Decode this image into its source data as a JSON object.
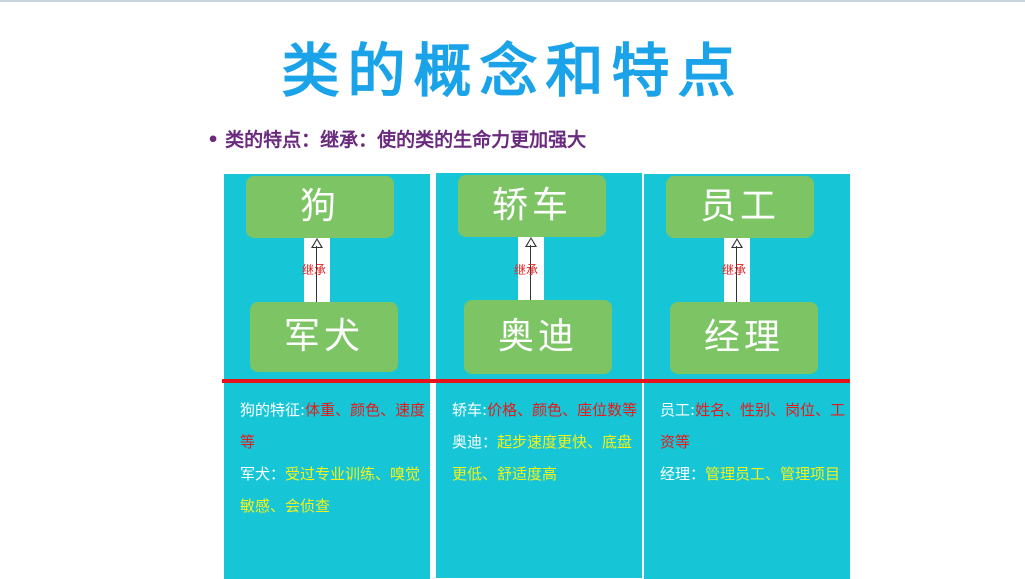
{
  "title": "类的概念和特点",
  "bullet": {
    "dot": "•",
    "text": "类的特点：继承：使的类的生命力更加强大"
  },
  "relation_label": "继承",
  "panels": [
    {
      "parent": "狗",
      "child": "军犬",
      "desc1_head": "狗的特征:",
      "desc1_body": "体重、颜色、速度等",
      "desc2_head": "军犬：",
      "desc2_body": "受过专业训练、嗅觉敏感、会侦查"
    },
    {
      "parent": "轿车",
      "child": "奥迪",
      "desc1_head": "轿车:",
      "desc1_body": "价格、颜色、座位数等",
      "desc2_head": "奥迪：",
      "desc2_body": "起步速度更快、底盘更低、舒适度高"
    },
    {
      "parent": "员工",
      "child": "经理",
      "desc1_head": "员工:",
      "desc1_body": "姓名、性别、岗位、工资等",
      "desc2_head": "经理：",
      "desc2_body": "管理员工、管理项目"
    }
  ],
  "colors": {
    "title": "#1aa3e8",
    "panel": "#16c6d6",
    "box": "#7cc464",
    "divider": "#e8141c",
    "label_red": "#e61a1a",
    "label_yellow": "#f2f21a"
  }
}
